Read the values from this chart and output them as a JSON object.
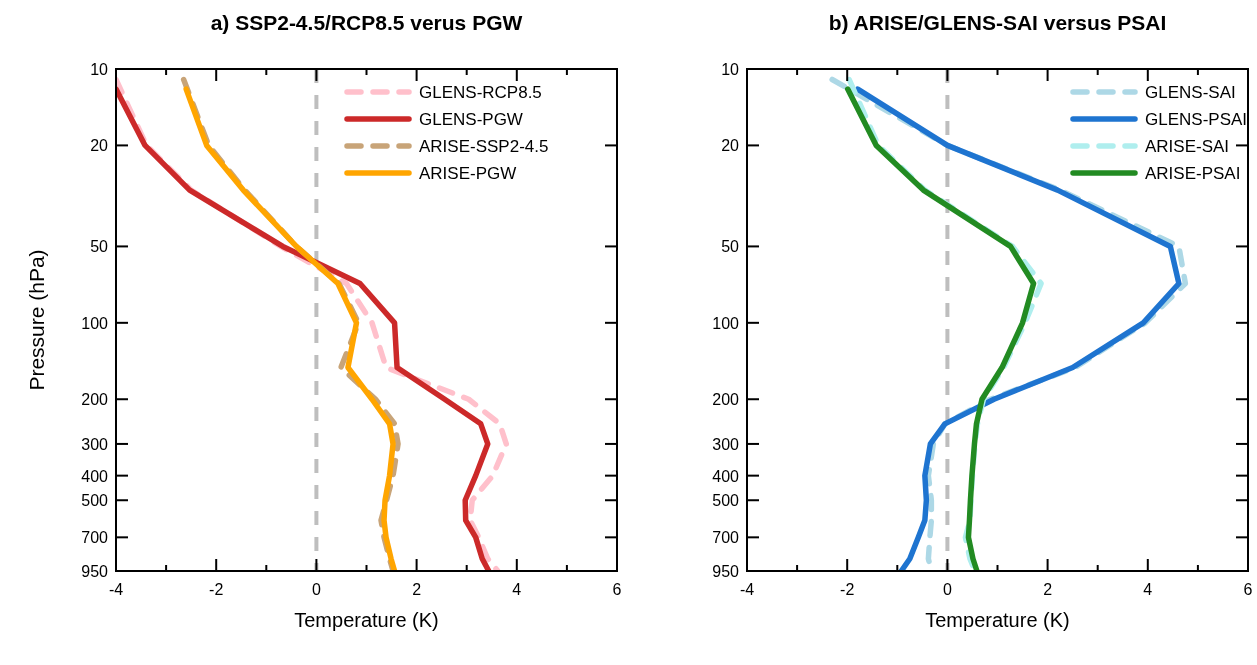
{
  "chart_data": [
    {
      "type": "line",
      "title": "a) SSP2-4.5/RCP8.5 verus PGW",
      "xlabel": "Temperature (K)",
      "ylabel": "Pressure (hPa)",
      "log": "y",
      "legend": "top right",
      "xlim": [
        -4,
        6
      ],
      "xticks": [
        -4,
        {
          "value": -3,
          "label": null
        },
        -2,
        {
          "value": -1,
          "label": null
        },
        0,
        {
          "value": 1,
          "label": null
        },
        2,
        {
          "value": 3,
          "label": null
        },
        4,
        {
          "value": 5,
          "label": null
        },
        6
      ],
      "ylim": [
        950,
        10
      ],
      "yticks": [
        10,
        20,
        50,
        100,
        200,
        300,
        400,
        500,
        700,
        950
      ],
      "ref_lines": [
        {
          "axis": "x",
          "value": 0,
          "color": "#bebebe",
          "line_style": "dashed"
        }
      ],
      "series": [
        {
          "name": "GLENS-RCP8.5",
          "color": "#ffc0cb",
          "line_style": "dashed",
          "x": [
            -4.0,
            -3.39,
            -2.5,
            -0.71,
            0.6,
            1.11,
            1.39,
            3.04,
            3.66,
            3.79,
            3.52,
            3.11,
            3.07,
            3.24,
            3.42,
            3.62
          ],
          "values": [
            11,
            20,
            30,
            50,
            70,
            100,
            150,
            200,
            250,
            300,
            400,
            500,
            600,
            700,
            850,
            950
          ]
        },
        {
          "name": "GLENS-PGW",
          "color": "#cc2929",
          "line_style": "solid",
          "x": [
            -4.0,
            -3.42,
            -2.53,
            -0.67,
            0.87,
            1.56,
            1.61,
            2.56,
            3.28,
            3.42,
            3.18,
            2.97,
            2.98,
            3.18,
            3.31,
            3.44
          ],
          "values": [
            12,
            20,
            30,
            50,
            70,
            100,
            150,
            200,
            250,
            300,
            400,
            500,
            600,
            700,
            850,
            950
          ]
        },
        {
          "name": "ARISE-SSP2-4.5",
          "color": "#c8a478",
          "line_style": "dashed",
          "x": [
            -2.65,
            -2.15,
            -1.43,
            -0.4,
            0.45,
            0.84,
            0.49,
            1.18,
            1.56,
            1.63,
            1.53,
            1.4,
            1.29,
            1.35,
            1.46,
            1.53
          ],
          "values": [
            11,
            20,
            30,
            50,
            70,
            100,
            150,
            200,
            250,
            300,
            400,
            500,
            600,
            700,
            850,
            950
          ]
        },
        {
          "name": "ARISE-PGW",
          "color": "#ffa500",
          "line_style": "solid",
          "x": [
            -2.6,
            -2.19,
            -1.46,
            -0.4,
            0.43,
            0.8,
            0.63,
            1.11,
            1.46,
            1.53,
            1.46,
            1.37,
            1.35,
            1.39,
            1.49,
            1.56
          ],
          "values": [
            12,
            20,
            30,
            50,
            70,
            100,
            150,
            200,
            250,
            300,
            400,
            500,
            600,
            700,
            850,
            950
          ]
        }
      ]
    },
    {
      "type": "line",
      "title": "b) ARISE/GLENS-SAI versus PSAI",
      "xlabel": "Temperature (K)",
      "log": "y",
      "legend": "top right",
      "xlim": [
        -4,
        6
      ],
      "xticks": [
        -4,
        {
          "value": -3,
          "label": null
        },
        -2,
        {
          "value": -1,
          "label": null
        },
        0,
        {
          "value": 1,
          "label": null
        },
        2,
        {
          "value": 3,
          "label": null
        },
        4,
        {
          "value": 5,
          "label": null
        },
        6
      ],
      "ylim": [
        950,
        10
      ],
      "yticks": [
        10,
        20,
        50,
        100,
        200,
        300,
        400,
        500,
        700,
        950
      ],
      "ref_lines": [
        {
          "axis": "x",
          "value": 0,
          "color": "#bebebe",
          "line_style": "dashed"
        }
      ],
      "series": [
        {
          "name": "GLENS-SAI",
          "color": "#add8e6",
          "line_style": "dashed",
          "x": [
            -2.3,
            0.0,
            2.25,
            4.62,
            4.75,
            3.95,
            2.55,
            0.86,
            -0.05,
            -0.28,
            -0.38,
            -0.32,
            -0.32,
            -0.35,
            -0.38,
            -0.32
          ],
          "values": [
            11,
            20,
            30,
            50,
            70,
            100,
            150,
            200,
            250,
            300,
            400,
            500,
            600,
            700,
            850,
            950
          ]
        },
        {
          "name": "GLENS-PSAI",
          "color": "#1e74d0",
          "line_style": "solid",
          "x": [
            -1.79,
            0.0,
            2.2,
            4.45,
            4.62,
            3.91,
            2.5,
            0.93,
            -0.05,
            -0.34,
            -0.45,
            -0.42,
            -0.45,
            -0.58,
            -0.75,
            -0.92
          ],
          "values": [
            12,
            20,
            30,
            50,
            70,
            100,
            150,
            200,
            250,
            300,
            400,
            500,
            600,
            700,
            850,
            950
          ]
        },
        {
          "name": "ARISE-SAI",
          "color": "#afeeee",
          "line_style": "dashed",
          "x": [
            -1.96,
            -1.38,
            -0.45,
            1.3,
            1.87,
            1.55,
            1.12,
            0.72,
            0.6,
            0.55,
            0.5,
            0.47,
            0.45,
            0.36,
            0.45,
            0.55
          ],
          "values": [
            11,
            20,
            30,
            50,
            70,
            100,
            150,
            200,
            250,
            300,
            400,
            500,
            600,
            700,
            850,
            950
          ]
        },
        {
          "name": "ARISE-PSAI",
          "color": "#228b22",
          "line_style": "solid",
          "x": [
            -1.99,
            -1.42,
            -0.48,
            1.26,
            1.72,
            1.5,
            1.09,
            0.69,
            0.58,
            0.54,
            0.49,
            0.46,
            0.44,
            0.42,
            0.51,
            0.59
          ],
          "values": [
            12,
            20,
            30,
            50,
            70,
            100,
            150,
            200,
            250,
            300,
            400,
            500,
            600,
            700,
            850,
            950
          ]
        }
      ]
    }
  ]
}
